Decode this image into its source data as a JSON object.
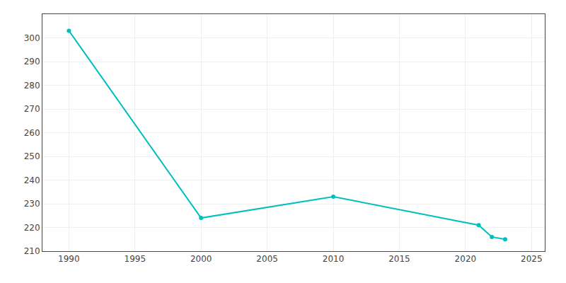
{
  "chart_data": {
    "type": "line",
    "x": [
      1990,
      2000,
      2010,
      2021,
      2022,
      2023
    ],
    "values": [
      303,
      224,
      233,
      221,
      216,
      215
    ],
    "color": "#00BFBF",
    "marker": "circle",
    "xlim": [
      1988,
      2026
    ],
    "xticks": [
      1990,
      1995,
      2000,
      2005,
      2010,
      2015,
      2020,
      2025
    ],
    "ylim": [
      210,
      310
    ],
    "yticks": [
      210,
      220,
      230,
      240,
      250,
      260,
      270,
      280,
      290,
      300
    ],
    "grid": true
  }
}
